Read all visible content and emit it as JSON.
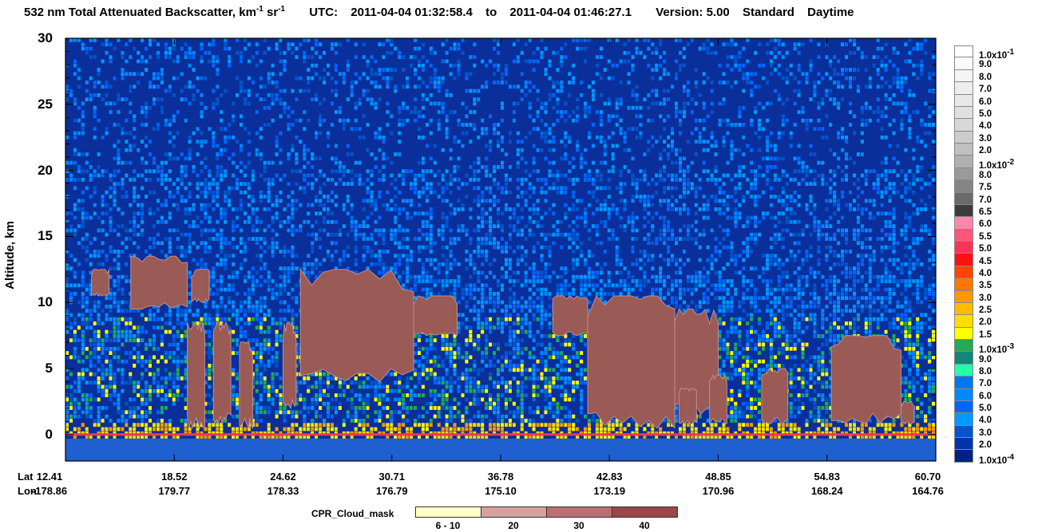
{
  "title": {
    "main": "532 nm Total Attenuated Backscatter, km",
    "sup1": "-1",
    "sr": " sr",
    "sup2": "-1",
    "utc_label": "UTC:",
    "utc_start": "2011-04-04 01:32:58.4",
    "to": "to",
    "utc_end": "2011-04-04 01:46:27.1",
    "version": "Version: 5.00",
    "product": "Standard",
    "mode": "Daytime"
  },
  "chart_data": {
    "type": "heatmap",
    "ylabel": "Altitude, km",
    "ylim": [
      -2,
      30
    ],
    "yticks": [
      0,
      5,
      10,
      15,
      20,
      25,
      30
    ],
    "x_row_labels": [
      "Lat",
      "Lon"
    ],
    "xticks": [
      {
        "lat": "12.41",
        "lon": "-178.86"
      },
      {
        "lat": "18.52",
        "lon": "179.77"
      },
      {
        "lat": "24.62",
        "lon": "178.33"
      },
      {
        "lat": "30.71",
        "lon": "176.79"
      },
      {
        "lat": "36.78",
        "lon": "175.10"
      },
      {
        "lat": "42.83",
        "lon": "173.19"
      },
      {
        "lat": "48.85",
        "lon": "170.96"
      },
      {
        "lat": "54.83",
        "lon": "168.24"
      },
      {
        "lat": "60.70",
        "lon": "164.76"
      }
    ],
    "cloud_mask_regions": [
      {
        "x0": 0.03,
        "x1": 0.05,
        "y_top": 12.5,
        "y_bot": 10.5
      },
      {
        "x0": 0.075,
        "x1": 0.14,
        "y_top": 13.5,
        "y_bot": 9.5
      },
      {
        "x0": 0.145,
        "x1": 0.165,
        "y_top": 12.5,
        "y_bot": 10.0
      },
      {
        "x0": 0.14,
        "x1": 0.16,
        "y_top": 8.5,
        "y_bot": 0.5
      },
      {
        "x0": 0.17,
        "x1": 0.19,
        "y_top": 8.5,
        "y_bot": 0.7
      },
      {
        "x0": 0.2,
        "x1": 0.215,
        "y_top": 7.0,
        "y_bot": 0.5
      },
      {
        "x0": 0.25,
        "x1": 0.265,
        "y_top": 8.5,
        "y_bot": 2.0
      },
      {
        "x0": 0.27,
        "x1": 0.4,
        "y_top": 12.5,
        "y_bot": 4.0
      },
      {
        "x0": 0.4,
        "x1": 0.45,
        "y_top": 10.5,
        "y_bot": 7.5
      },
      {
        "x0": 0.56,
        "x1": 0.6,
        "y_top": 10.5,
        "y_bot": 7.5
      },
      {
        "x0": 0.6,
        "x1": 0.7,
        "y_top": 10.5,
        "y_bot": 0.5
      },
      {
        "x0": 0.7,
        "x1": 0.75,
        "y_top": 9.5,
        "y_bot": 1.5
      },
      {
        "x0": 0.705,
        "x1": 0.725,
        "y_top": 3.5,
        "y_bot": 0.8
      },
      {
        "x0": 0.74,
        "x1": 0.76,
        "y_top": 4.5,
        "y_bot": 0.8
      },
      {
        "x0": 0.8,
        "x1": 0.83,
        "y_top": 5.0,
        "y_bot": 0.8
      },
      {
        "x0": 0.88,
        "x1": 0.96,
        "y_top": 7.5,
        "y_bot": 0.8
      },
      {
        "x0": 0.96,
        "x1": 0.975,
        "y_top": 2.5,
        "y_bot": 0.8
      }
    ]
  },
  "colorbar": {
    "levels": [
      {
        "label": "1.0x10",
        "sup": "-1",
        "color": "#ffffff"
      },
      {
        "label": "9.0",
        "color": "#fafafa"
      },
      {
        "label": "8.0",
        "color": "#f5f5f5"
      },
      {
        "label": "7.0",
        "color": "#eeeeee"
      },
      {
        "label": "6.0",
        "color": "#e8e8e8"
      },
      {
        "label": "5.0",
        "color": "#e0e0e0"
      },
      {
        "label": "4.0",
        "color": "#d8d8d8"
      },
      {
        "label": "3.0",
        "color": "#cccccc"
      },
      {
        "label": "2.0",
        "color": "#c0c0c0"
      },
      {
        "label": "1.0x10",
        "sup": "-2",
        "color": "#b0b0b0"
      },
      {
        "label": "8.0",
        "color": "#9a9a9a"
      },
      {
        "label": "7.5",
        "color": "#858585"
      },
      {
        "label": "7.0",
        "color": "#6a6a6a"
      },
      {
        "label": "6.5",
        "color": "#3c3c3c"
      },
      {
        "label": "6.0",
        "color": "#ff88aa"
      },
      {
        "label": "5.5",
        "color": "#ff5577"
      },
      {
        "label": "5.0",
        "color": "#ff3355"
      },
      {
        "label": "4.5",
        "color": "#ff1111"
      },
      {
        "label": "4.0",
        "color": "#ff4400"
      },
      {
        "label": "3.5",
        "color": "#ff7700"
      },
      {
        "label": "3.0",
        "color": "#ff9900"
      },
      {
        "label": "2.5",
        "color": "#ffbb00"
      },
      {
        "label": "2.0",
        "color": "#ffdd00"
      },
      {
        "label": "1.5",
        "color": "#ffff00"
      },
      {
        "label": "1.0x10",
        "sup": "-3",
        "color": "#22aa55"
      },
      {
        "label": "9.0",
        "color": "#118877"
      },
      {
        "label": "8.0",
        "color": "#22ffaa"
      },
      {
        "label": "7.0",
        "color": "#0077ee"
      },
      {
        "label": "6.0",
        "color": "#0088ff"
      },
      {
        "label": "5.0",
        "color": "#0066ff"
      },
      {
        "label": "4.0",
        "color": "#0099ff"
      },
      {
        "label": "3.0",
        "color": "#0055cc"
      },
      {
        "label": "2.0",
        "color": "#0033aa"
      },
      {
        "label": "1.0x10",
        "sup": "-4",
        "color": "#002288"
      }
    ]
  },
  "cpr_legend": {
    "title": "CPR_Cloud_mask",
    "items": [
      {
        "label": "6 - 10",
        "color": "#ffffcc"
      },
      {
        "label": "20",
        "color": "#d9a0a0"
      },
      {
        "label": "30",
        "color": "#b87070"
      },
      {
        "label": "40",
        "color": "#9a4848"
      }
    ]
  }
}
